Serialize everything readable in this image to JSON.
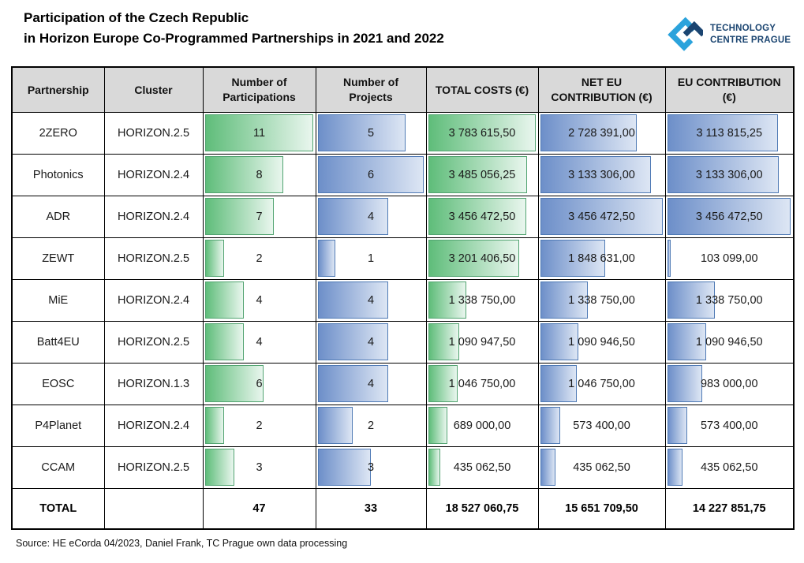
{
  "title": {
    "line1": "Participation of the Czech Republic",
    "line2": "in Horizon Europe Co-Programmed Partnerships in 2021 and 2022"
  },
  "logo": {
    "line1": "TECHNOLOGY",
    "line2": "CENTRE PRAGUE",
    "light_blue": "#2ba3dc",
    "dark_blue": "#1b4571"
  },
  "colors": {
    "header_bg": "#d9d9d9",
    "table_border": "#000000",
    "green_bar_start": "#5fbd7a",
    "green_bar_end": "#e9f6ee",
    "green_bar_border": "#52a471",
    "blue_bar_start": "#6d8fc9",
    "blue_bar_end": "#dde6f4",
    "blue_bar_border": "#4f7ab5"
  },
  "source_note": "Source: HE eCorda 04/2023, Daniel Frank, TC Prague own data processing",
  "chart_data": {
    "type": "table",
    "title": "Participation of the Czech Republic in Horizon Europe Co-Programmed Partnerships in 2021 and 2022",
    "databars": {
      "participations": "green",
      "projects": "blue",
      "total_costs": "green",
      "net_eu": "blue",
      "eu_contrib": "blue",
      "scaling": "bar length proportional to value / column maximum"
    },
    "columns": [
      "Partnership",
      "Cluster",
      "Number of Participations",
      "Number of Projects",
      "TOTAL COSTS (€)",
      "NET EU CONTRIBUTION (€)",
      "EU CONTRIBUTION (€)"
    ],
    "rows": [
      {
        "partnership": "2ZERO",
        "cluster": "HORIZON.2.5",
        "participations": 11,
        "projects": 5,
        "total_costs": 3783615.5,
        "total_costs_fmt": "3 783 615,50",
        "net_eu": 2728391.0,
        "net_eu_fmt": "2 728 391,00",
        "eu_contrib": 3113815.25,
        "eu_contrib_fmt": "3 113 815,25"
      },
      {
        "partnership": "Photonics",
        "cluster": "HORIZON.2.4",
        "participations": 8,
        "projects": 6,
        "total_costs": 3485056.25,
        "total_costs_fmt": "3 485 056,25",
        "net_eu": 3133306.0,
        "net_eu_fmt": "3 133 306,00",
        "eu_contrib": 3133306.0,
        "eu_contrib_fmt": "3 133 306,00"
      },
      {
        "partnership": "ADR",
        "cluster": "HORIZON.2.4",
        "participations": 7,
        "projects": 4,
        "total_costs": 3456472.5,
        "total_costs_fmt": "3 456 472,50",
        "net_eu": 3456472.5,
        "net_eu_fmt": "3 456 472,50",
        "eu_contrib": 3456472.5,
        "eu_contrib_fmt": "3 456 472,50"
      },
      {
        "partnership": "ZEWT",
        "cluster": "HORIZON.2.5",
        "participations": 2,
        "projects": 1,
        "total_costs": 3201406.5,
        "total_costs_fmt": "3 201 406,50",
        "net_eu": 1848631.0,
        "net_eu_fmt": "1 848 631,00",
        "eu_contrib": 103099.0,
        "eu_contrib_fmt": "103 099,00"
      },
      {
        "partnership": "MiE",
        "cluster": "HORIZON.2.4",
        "participations": 4,
        "projects": 4,
        "total_costs": 1338750.0,
        "total_costs_fmt": "1 338 750,00",
        "net_eu": 1338750.0,
        "net_eu_fmt": "1 338 750,00",
        "eu_contrib": 1338750.0,
        "eu_contrib_fmt": "1 338 750,00"
      },
      {
        "partnership": "Batt4EU",
        "cluster": "HORIZON.2.5",
        "participations": 4,
        "projects": 4,
        "total_costs": 1090947.5,
        "total_costs_fmt": "1 090 947,50",
        "net_eu": 1090946.5,
        "net_eu_fmt": "1 090 946,50",
        "eu_contrib": 1090946.5,
        "eu_contrib_fmt": "1 090 946,50"
      },
      {
        "partnership": "EOSC",
        "cluster": "HORIZON.1.3",
        "participations": 6,
        "projects": 4,
        "total_costs": 1046750.0,
        "total_costs_fmt": "1 046 750,00",
        "net_eu": 1046750.0,
        "net_eu_fmt": "1 046 750,00",
        "eu_contrib": 983000.0,
        "eu_contrib_fmt": "983 000,00"
      },
      {
        "partnership": "P4Planet",
        "cluster": "HORIZON.2.4",
        "participations": 2,
        "projects": 2,
        "total_costs": 689000.0,
        "total_costs_fmt": "689 000,00",
        "net_eu": 573400.0,
        "net_eu_fmt": "573 400,00",
        "eu_contrib": 573400.0,
        "eu_contrib_fmt": "573 400,00"
      },
      {
        "partnership": "CCAM",
        "cluster": "HORIZON.2.5",
        "participations": 3,
        "projects": 3,
        "total_costs": 435062.5,
        "total_costs_fmt": "435 062,50",
        "net_eu": 435062.5,
        "net_eu_fmt": "435 062,50",
        "eu_contrib": 435062.5,
        "eu_contrib_fmt": "435 062,50"
      }
    ],
    "total": {
      "label": "TOTAL",
      "participations": 47,
      "projects": 33,
      "total_costs": 18527060.75,
      "total_costs_fmt": "18 527 060,75",
      "net_eu": 15651709.5,
      "net_eu_fmt": "15 651 709,50",
      "eu_contrib": 14227851.75,
      "eu_contrib_fmt": "14 227 851,75"
    }
  }
}
